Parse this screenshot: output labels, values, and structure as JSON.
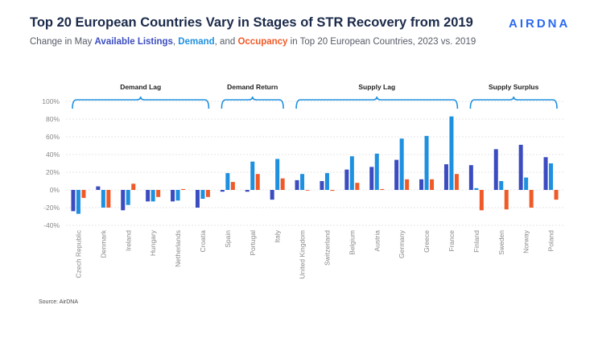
{
  "header": {
    "title": "Top 20 European Countries Vary in Stages of STR Recovery from 2019",
    "brand": "AIRDNA",
    "subtitle_before": "Change in May ",
    "subtitle_listings": "Available Listings",
    "subtitle_sep1": ", ",
    "subtitle_demand": "Demand",
    "subtitle_sep2": ", and ",
    "subtitle_occupancy": "Occupancy",
    "subtitle_after": " in Top 20 European Countries, 2023 vs. 2019"
  },
  "source": "Source: AirDNA",
  "colors": {
    "listings": "#3b4cc0",
    "demand": "#1e90e0",
    "occupancy": "#f05a28",
    "bracket": "#1e90e0",
    "grid": "#dddddd",
    "title": "#1b2a4a",
    "brand": "#2a69f0"
  },
  "chart_data": {
    "type": "bar",
    "categories": [
      "Czech Republic",
      "Denmark",
      "Ireland",
      "Hungary",
      "Netherlands",
      "Croatia",
      "Spain",
      "Portugal",
      "Italy",
      "United Kingdom",
      "Switzerland",
      "Belgium",
      "Austria",
      "Germany",
      "Greece",
      "France",
      "Finland",
      "Sweden",
      "Norway",
      "Poland"
    ],
    "series": [
      {
        "name": "Available Listings",
        "values": [
          -24,
          4,
          -23,
          -13,
          -13,
          -20,
          -2,
          -2,
          -11,
          11,
          10,
          23,
          26,
          34,
          12,
          29,
          28,
          46,
          51,
          37
        ]
      },
      {
        "name": "Demand",
        "values": [
          -27,
          -20,
          -17,
          -13,
          -12,
          -10,
          19,
          32,
          35,
          18,
          19,
          38,
          41,
          58,
          61,
          83,
          2,
          10,
          14,
          30
        ]
      },
      {
        "name": "Occupancy",
        "values": [
          -9,
          -20,
          7,
          -8,
          1,
          -8,
          9,
          18,
          13,
          0,
          -1,
          8,
          1,
          12,
          12,
          18,
          -23,
          -22,
          -20,
          -11
        ]
      }
    ],
    "ylim": [
      -40,
      100
    ],
    "yticks": [
      -40,
      -20,
      0,
      20,
      40,
      60,
      80,
      100
    ],
    "ytick_labels": [
      "-40%",
      "-20%",
      "0%",
      "20%",
      "40%",
      "60%",
      "80%",
      "100%"
    ],
    "xlabel": "",
    "ylabel": "",
    "grid": true,
    "groups": [
      {
        "label": "Demand Lag",
        "start": 0,
        "end": 5
      },
      {
        "label": "Demand Return",
        "start": 6,
        "end": 8
      },
      {
        "label": "Supply Lag",
        "start": 9,
        "end": 15
      },
      {
        "label": "Supply Surplus",
        "start": 16,
        "end": 19
      }
    ]
  }
}
